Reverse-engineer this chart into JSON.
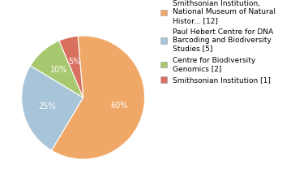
{
  "slices": [
    {
      "label": "Smithsonian Institution,\nNational Museum of Natural\nHistor... [12]",
      "value": 60,
      "color": "#f0a868",
      "pct": "60%"
    },
    {
      "label": "Paul Hebert Centre for DNA\nBarcoding and Biodiversity\nStudies [5]",
      "value": 25,
      "color": "#a8c4d8",
      "pct": "25%"
    },
    {
      "label": "Centre for Biodiversity\nGenomics [2]",
      "value": 10,
      "color": "#a8c870",
      "pct": "10%"
    },
    {
      "label": "Smithsonian Institution [1]",
      "value": 5,
      "color": "#d87060",
      "pct": "5%"
    }
  ],
  "background_color": "#ffffff",
  "pct_label_color": "#ffffff",
  "pct_fontsize": 7,
  "legend_fontsize": 6.5,
  "startangle": 95
}
